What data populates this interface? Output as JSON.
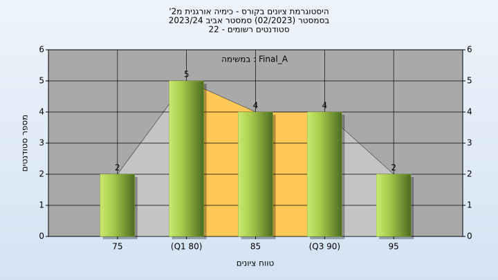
{
  "chart_data": {
    "type": "bar",
    "title": [
      "היסטוגרמת ציונים בקורס - כימיה אורגנית מ2'",
      "בסמסטר (02/2023) סמסטר אביב 2023/24",
      "סטודנטים רשומים - 22"
    ],
    "legend_label": "Final_A : במשימה",
    "x_label": "טווח ציונים",
    "y_label": "מספר סטודנטים",
    "categories": [
      "75",
      "(Q1 80)",
      "85",
      "(Q3 90)",
      "95"
    ],
    "values": [
      2,
      5,
      4,
      4,
      2
    ],
    "ylim": [
      0,
      6
    ],
    "yticks": [
      0,
      1,
      2,
      3,
      4,
      5,
      6
    ],
    "y2lim": [
      0,
      6
    ],
    "y2ticks": [
      0,
      1,
      2,
      3,
      4,
      5,
      6
    ],
    "grid": true,
    "color": "#8fb33a"
  }
}
